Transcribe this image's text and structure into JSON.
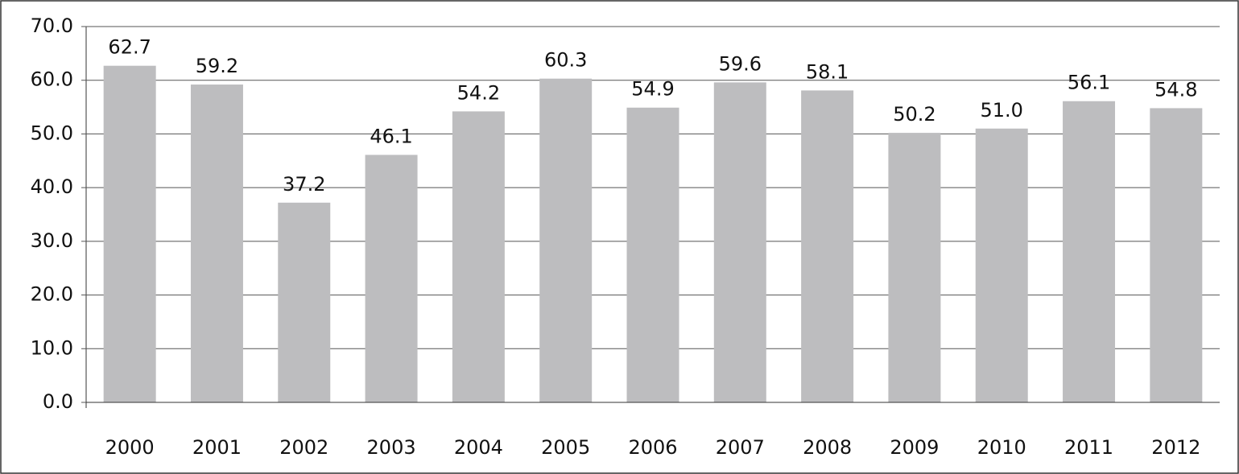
{
  "chart_data": {
    "type": "bar",
    "categories": [
      "2000",
      "2001",
      "2002",
      "2003",
      "2004",
      "2005",
      "2006",
      "2007",
      "2008",
      "2009",
      "2010",
      "2011",
      "2012"
    ],
    "values": [
      62.7,
      59.2,
      37.2,
      46.1,
      54.2,
      60.3,
      54.9,
      59.6,
      58.1,
      50.2,
      51.0,
      56.1,
      54.8
    ],
    "value_labels": [
      "62.7",
      "59.2",
      "37.2",
      "46.1",
      "54.2",
      "60.3",
      "54.9",
      "59.6",
      "58.1",
      "50.2",
      "51.0",
      "56.1",
      "54.8"
    ],
    "color": "#bdbdbf",
    "ylim": [
      0,
      70
    ],
    "yticks": [
      {
        "value": 0,
        "label": "0.0"
      },
      {
        "value": 10,
        "label": "10.0"
      },
      {
        "value": 20,
        "label": "20.0"
      },
      {
        "value": 30,
        "label": "30.0"
      },
      {
        "value": 40,
        "label": "40.0"
      },
      {
        "value": 50,
        "label": "50.0"
      },
      {
        "value": 60,
        "label": "60.0"
      },
      {
        "value": 70,
        "label": "70.0"
      }
    ],
    "grid": true
  }
}
